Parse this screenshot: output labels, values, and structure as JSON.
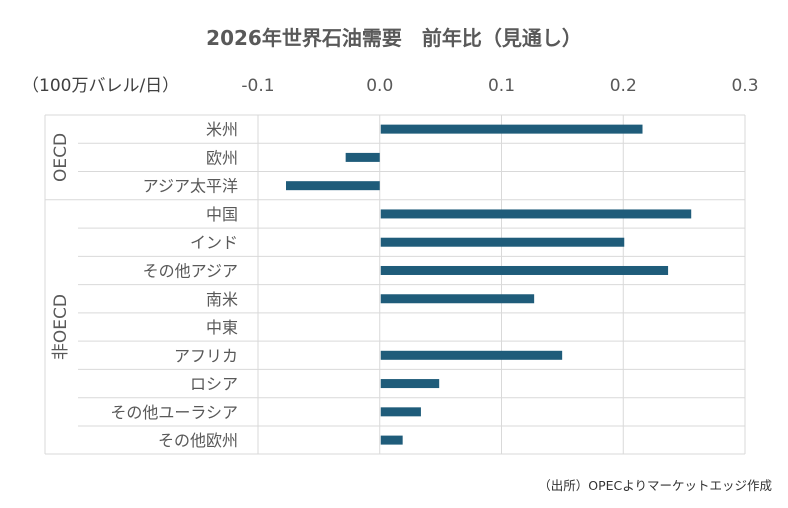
{
  "chart_data": {
    "type": "bar",
    "orientation": "horizontal",
    "title": "2026年世界石油需要　前年比（見通し）",
    "unit_label": "（100万バレル/日）",
    "xlim": [
      -0.1,
      0.3
    ],
    "x_ticks": [
      "-0.1",
      "0.0",
      "0.1",
      "0.2",
      "0.3"
    ],
    "negative_tick_color": "#e00000",
    "bar_color": "#1f5c7a",
    "grid": true,
    "groups": [
      {
        "name": "OECD",
        "categories": [
          "米州",
          "欧州",
          "アジア太平洋"
        ],
        "values": [
          0.215,
          -0.028,
          -0.077
        ]
      },
      {
        "name": "非OECD",
        "categories": [
          "中国",
          "インド",
          "その他アジア",
          "南米",
          "中東",
          "アフリカ",
          "ロシア",
          "その他ユーラシア",
          "その他欧州"
        ],
        "values": [
          0.255,
          0.2,
          0.236,
          0.126,
          0.0,
          0.149,
          0.048,
          0.033,
          0.018
        ]
      }
    ],
    "source": "（出所）OPECよりマーケットエッジ作成"
  }
}
